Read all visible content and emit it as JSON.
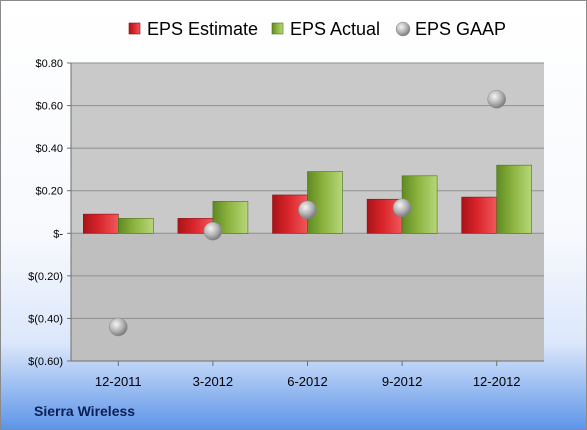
{
  "company": "Sierra Wireless",
  "colors": {
    "estimate": "#d9252b",
    "actual": "#8cb33f",
    "gaap": "#b3b3b3"
  },
  "chart_data": {
    "type": "bar",
    "categories": [
      "12-2011",
      "3-2012",
      "6-2012",
      "9-2012",
      "12-2012"
    ],
    "series": [
      {
        "name": "EPS Estimate",
        "kind": "bar",
        "values": [
          0.09,
          0.07,
          0.18,
          0.16,
          0.17
        ]
      },
      {
        "name": "EPS Actual",
        "kind": "bar",
        "values": [
          0.07,
          0.15,
          0.29,
          0.27,
          0.32
        ]
      },
      {
        "name": "EPS GAAP",
        "kind": "marker",
        "values": [
          -0.44,
          0.01,
          0.11,
          0.12,
          0.63
        ]
      }
    ],
    "ylim": [
      -0.6,
      0.8
    ],
    "yticks": [
      0.8,
      0.6,
      0.4,
      0.2,
      0,
      -0.2,
      -0.4,
      -0.6
    ],
    "ytick_labels": [
      "$0.80",
      "$0.60",
      "$0.40",
      "$0.20",
      "$-",
      "$(0.20)",
      "$(0.40)",
      "$(0.60)"
    ],
    "grid": true,
    "legend": "top"
  }
}
